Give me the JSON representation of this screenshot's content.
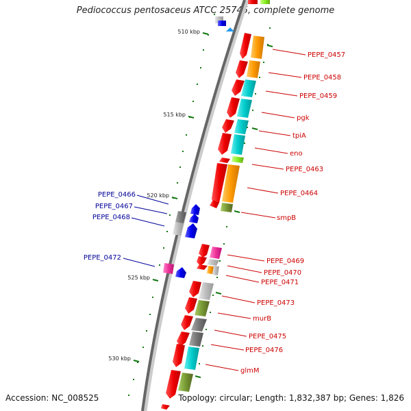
{
  "title": "Pediococcus pentosaceus ATCC 25745, complete genome",
  "accession": "Accession: NC_008525",
  "topology": "Topology: circular; Length: 1,832,387 bp; Genes: 1,826",
  "ticks": [
    "510 kbp",
    "515 kbp",
    "520 kbp",
    "525 kbp",
    "530 kbp"
  ],
  "colors": {
    "red": "#ee0000",
    "orange": "#ff9900",
    "cyan": "#00cccc",
    "lime": "#88ee22",
    "olive": "#779933",
    "grey": "#777777",
    "lightgrey": "#bbbbbb",
    "magenta": "#ee3399",
    "blue": "#0000ee",
    "darkred": "#cc0000",
    "navy": "#000099",
    "tickgreen": "#117711"
  },
  "right_genes": [
    "PEPE_0457",
    "PEPE_0458",
    "PEPE_0459",
    "pgk",
    "tpiA",
    "eno",
    "PEPE_0463",
    "PEPE_0464",
    "smpB",
    "PEPE_0469",
    "PEPE_0470",
    "PEPE_0471",
    "PEPE_0473",
    "murB",
    "PEPE_0475",
    "PEPE_0476",
    "glmM"
  ],
  "left_genes": [
    "PEPE_0466",
    "PEPE_0467",
    "PEPE_0468",
    "PEPE_0472"
  ]
}
